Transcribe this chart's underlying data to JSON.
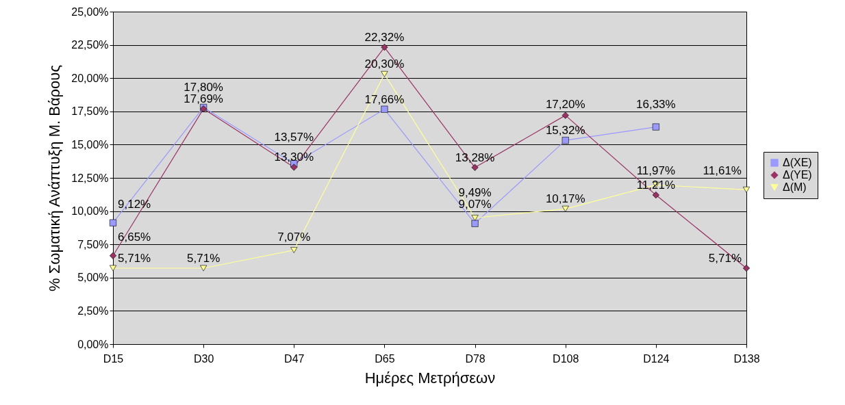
{
  "chart_data": {
    "type": "line",
    "xlabel": "Ημέρες Μετρήσεων",
    "ylabel": "% Σωματική Ανάπτυξη  Μ. Βάρους",
    "categories": [
      "D15",
      "D30",
      "D47",
      "D65",
      "D78",
      "D108",
      "D124",
      "D138"
    ],
    "series": [
      {
        "name": "Δ(XE)",
        "color": "#9999ff",
        "marker": "square",
        "values": [
          9.12,
          17.8,
          13.57,
          17.66,
          9.07,
          15.32,
          16.33,
          null
        ],
        "value_labels": [
          "9,12%",
          "17,80%",
          "13,57%",
          "17,66%",
          "9,07%",
          "15,32%",
          "16,33%",
          null
        ]
      },
      {
        "name": "Δ(YE)",
        "color": "#993366",
        "marker": "diamond",
        "values": [
          6.65,
          17.69,
          13.3,
          22.32,
          13.28,
          17.2,
          11.21,
          5.71
        ],
        "value_labels": [
          "6,65%",
          "17,69%",
          "13,30%",
          "22,32%",
          "13,28%",
          "17,20%",
          "11,21%",
          "5,71%"
        ]
      },
      {
        "name": "Δ(M)",
        "color": "#ffff99",
        "marker": "triangle-down",
        "values": [
          5.71,
          5.71,
          7.07,
          20.3,
          9.49,
          10.17,
          11.97,
          11.61
        ],
        "value_labels": [
          "5,71%",
          "5,71%",
          "7,07%",
          "20,30%",
          "9,49%",
          "10,17%",
          "11,97%",
          "11,61%"
        ]
      }
    ],
    "ylim": [
      0,
      25
    ],
    "yticks": [
      {
        "value": 0,
        "label": "0,00%"
      },
      {
        "value": 2.5,
        "label": "2,50%"
      },
      {
        "value": 5,
        "label": "5,00%"
      },
      {
        "value": 7.5,
        "label": "7,50%"
      },
      {
        "value": 10,
        "label": "10,00%"
      },
      {
        "value": 12.5,
        "label": "12,50%"
      },
      {
        "value": 15,
        "label": "15,00%"
      },
      {
        "value": 17.5,
        "label": "17,50%"
      },
      {
        "value": 20,
        "label": "20,00%"
      },
      {
        "value": 22.5,
        "label": "22,50%"
      },
      {
        "value": 25,
        "label": "25,00%"
      }
    ],
    "grid": "y",
    "legend": "right"
  }
}
